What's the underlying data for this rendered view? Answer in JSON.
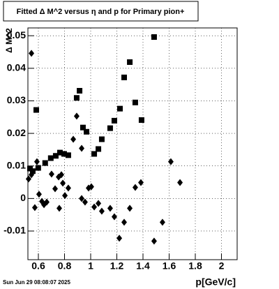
{
  "chart_data": {
    "type": "scatter",
    "title": "Fitted Δ M^2 versus η and p for Primary pion+",
    "x_label": "p[GeV/c]",
    "y_label": "Δ M^2",
    "footer": "Sun Jun 29 08:08:07 2025",
    "xlim": [
      0.52,
      2.12
    ],
    "ylim": [
      -0.0188,
      0.0524
    ],
    "xticks": [
      0.6,
      0.8,
      1,
      1.2,
      1.4,
      1.6,
      1.8,
      2
    ],
    "yticks": [
      -0.01,
      0,
      0.01,
      0.02,
      0.03,
      0.04,
      0.05
    ],
    "grid": true,
    "series": [
      {
        "marker": "square",
        "color": "#000000",
        "x": [
          0.584,
          0.536,
          0.557,
          0.599,
          0.652,
          0.695,
          0.733,
          0.765,
          0.797,
          0.829,
          0.893,
          0.915,
          0.941,
          0.968,
          1.027,
          1.059,
          1.085,
          1.149,
          1.181,
          1.224,
          1.256,
          1.299,
          1.341,
          1.389,
          1.485
        ],
        "values": [
          0.0272,
          0.0092,
          0.0084,
          0.0094,
          0.0109,
          0.0124,
          0.0131,
          0.0141,
          0.0137,
          0.0133,
          0.0309,
          0.0331,
          0.0218,
          0.0205,
          0.0137,
          0.0152,
          0.0182,
          0.0216,
          0.0239,
          0.0276,
          0.0372,
          0.0419,
          0.0295,
          0.0241,
          0.0496
        ]
      },
      {
        "marker": "diamond",
        "color": "#000000",
        "x": [
          0.547,
          0.525,
          0.547,
          0.573,
          0.589,
          0.605,
          0.627,
          0.643,
          0.664,
          0.701,
          0.728,
          0.755,
          0.776,
          0.76,
          0.787,
          0.803,
          0.829,
          0.867,
          0.893,
          0.931,
          0.931,
          0.957,
          0.984,
          1.005,
          1.027,
          1.059,
          1.085,
          1.149,
          1.181,
          1.219,
          1.256,
          1.299,
          1.341,
          1.384,
          1.485,
          1.549,
          1.613,
          1.683
        ],
        "values": [
          0.0446,
          0.006,
          0.0073,
          -0.0028,
          0.0113,
          0.0013,
          -0.0009,
          -0.0019,
          -0.0011,
          0.0075,
          0.003,
          0.0066,
          0.0073,
          -0.003,
          0.0047,
          0.0009,
          0.0032,
          0.0182,
          0.0253,
          0.0154,
          0,
          -0.0011,
          0.0032,
          0.0036,
          -0.0026,
          -0.0015,
          -0.0039,
          -0.003,
          -0.0056,
          -0.0122,
          -0.0073,
          -0.003,
          0.0034,
          0.0049,
          -0.0131,
          -0.0073,
          0.0113,
          0.0049
        ]
      }
    ]
  }
}
